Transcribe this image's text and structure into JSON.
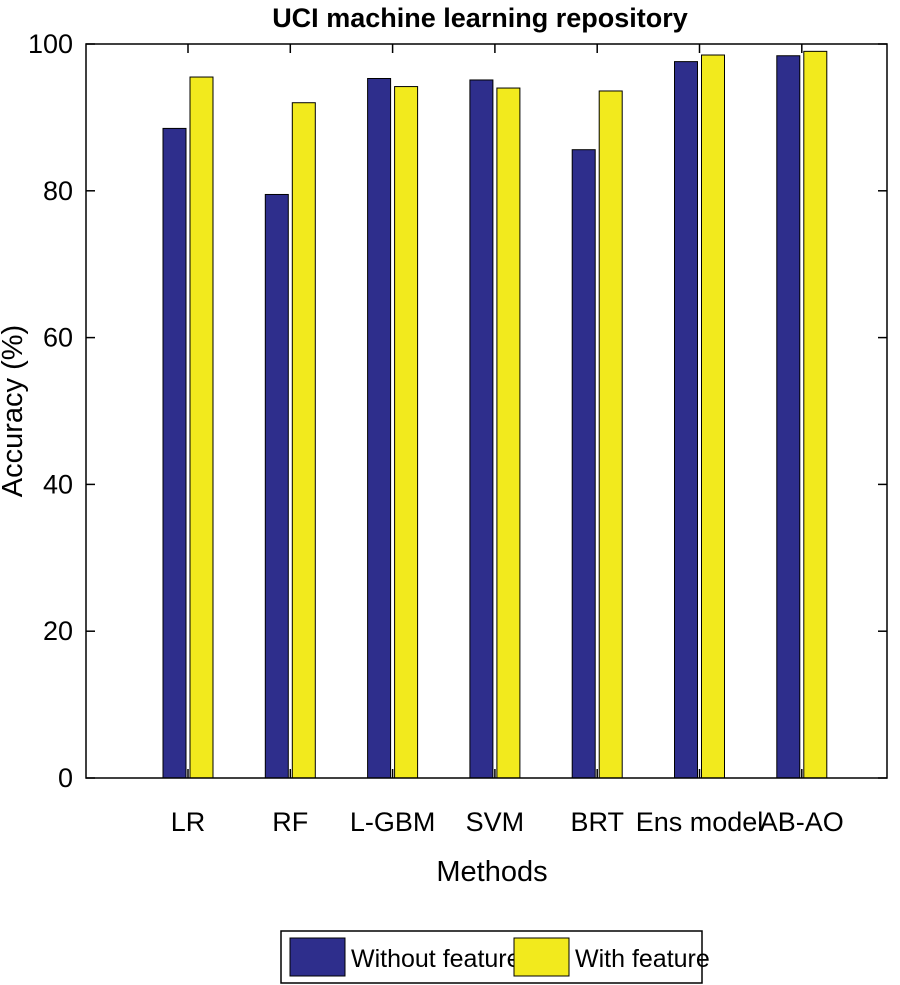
{
  "chart_data": {
    "type": "bar",
    "title": "UCI machine learning repository",
    "xlabel": "Methods",
    "ylabel": "Accuracy (%)",
    "categories": [
      "LR",
      "RF",
      "L-GBM",
      "SVM",
      "BRT",
      "Ens model",
      "AB-AO"
    ],
    "series": [
      {
        "name": "Without feature",
        "color": "#2e2e8c",
        "values": [
          88.5,
          79.5,
          95.3,
          95.1,
          85.6,
          97.6,
          98.4
        ]
      },
      {
        "name": "With feature",
        "color": "#f2ea1d",
        "values": [
          95.5,
          92.0,
          94.2,
          94.0,
          93.6,
          98.5,
          99.0
        ]
      }
    ],
    "ylim": [
      0,
      100
    ],
    "yticks": [
      0,
      20,
      40,
      60,
      80,
      100
    ],
    "grid": false,
    "legend_position": "bottom"
  }
}
